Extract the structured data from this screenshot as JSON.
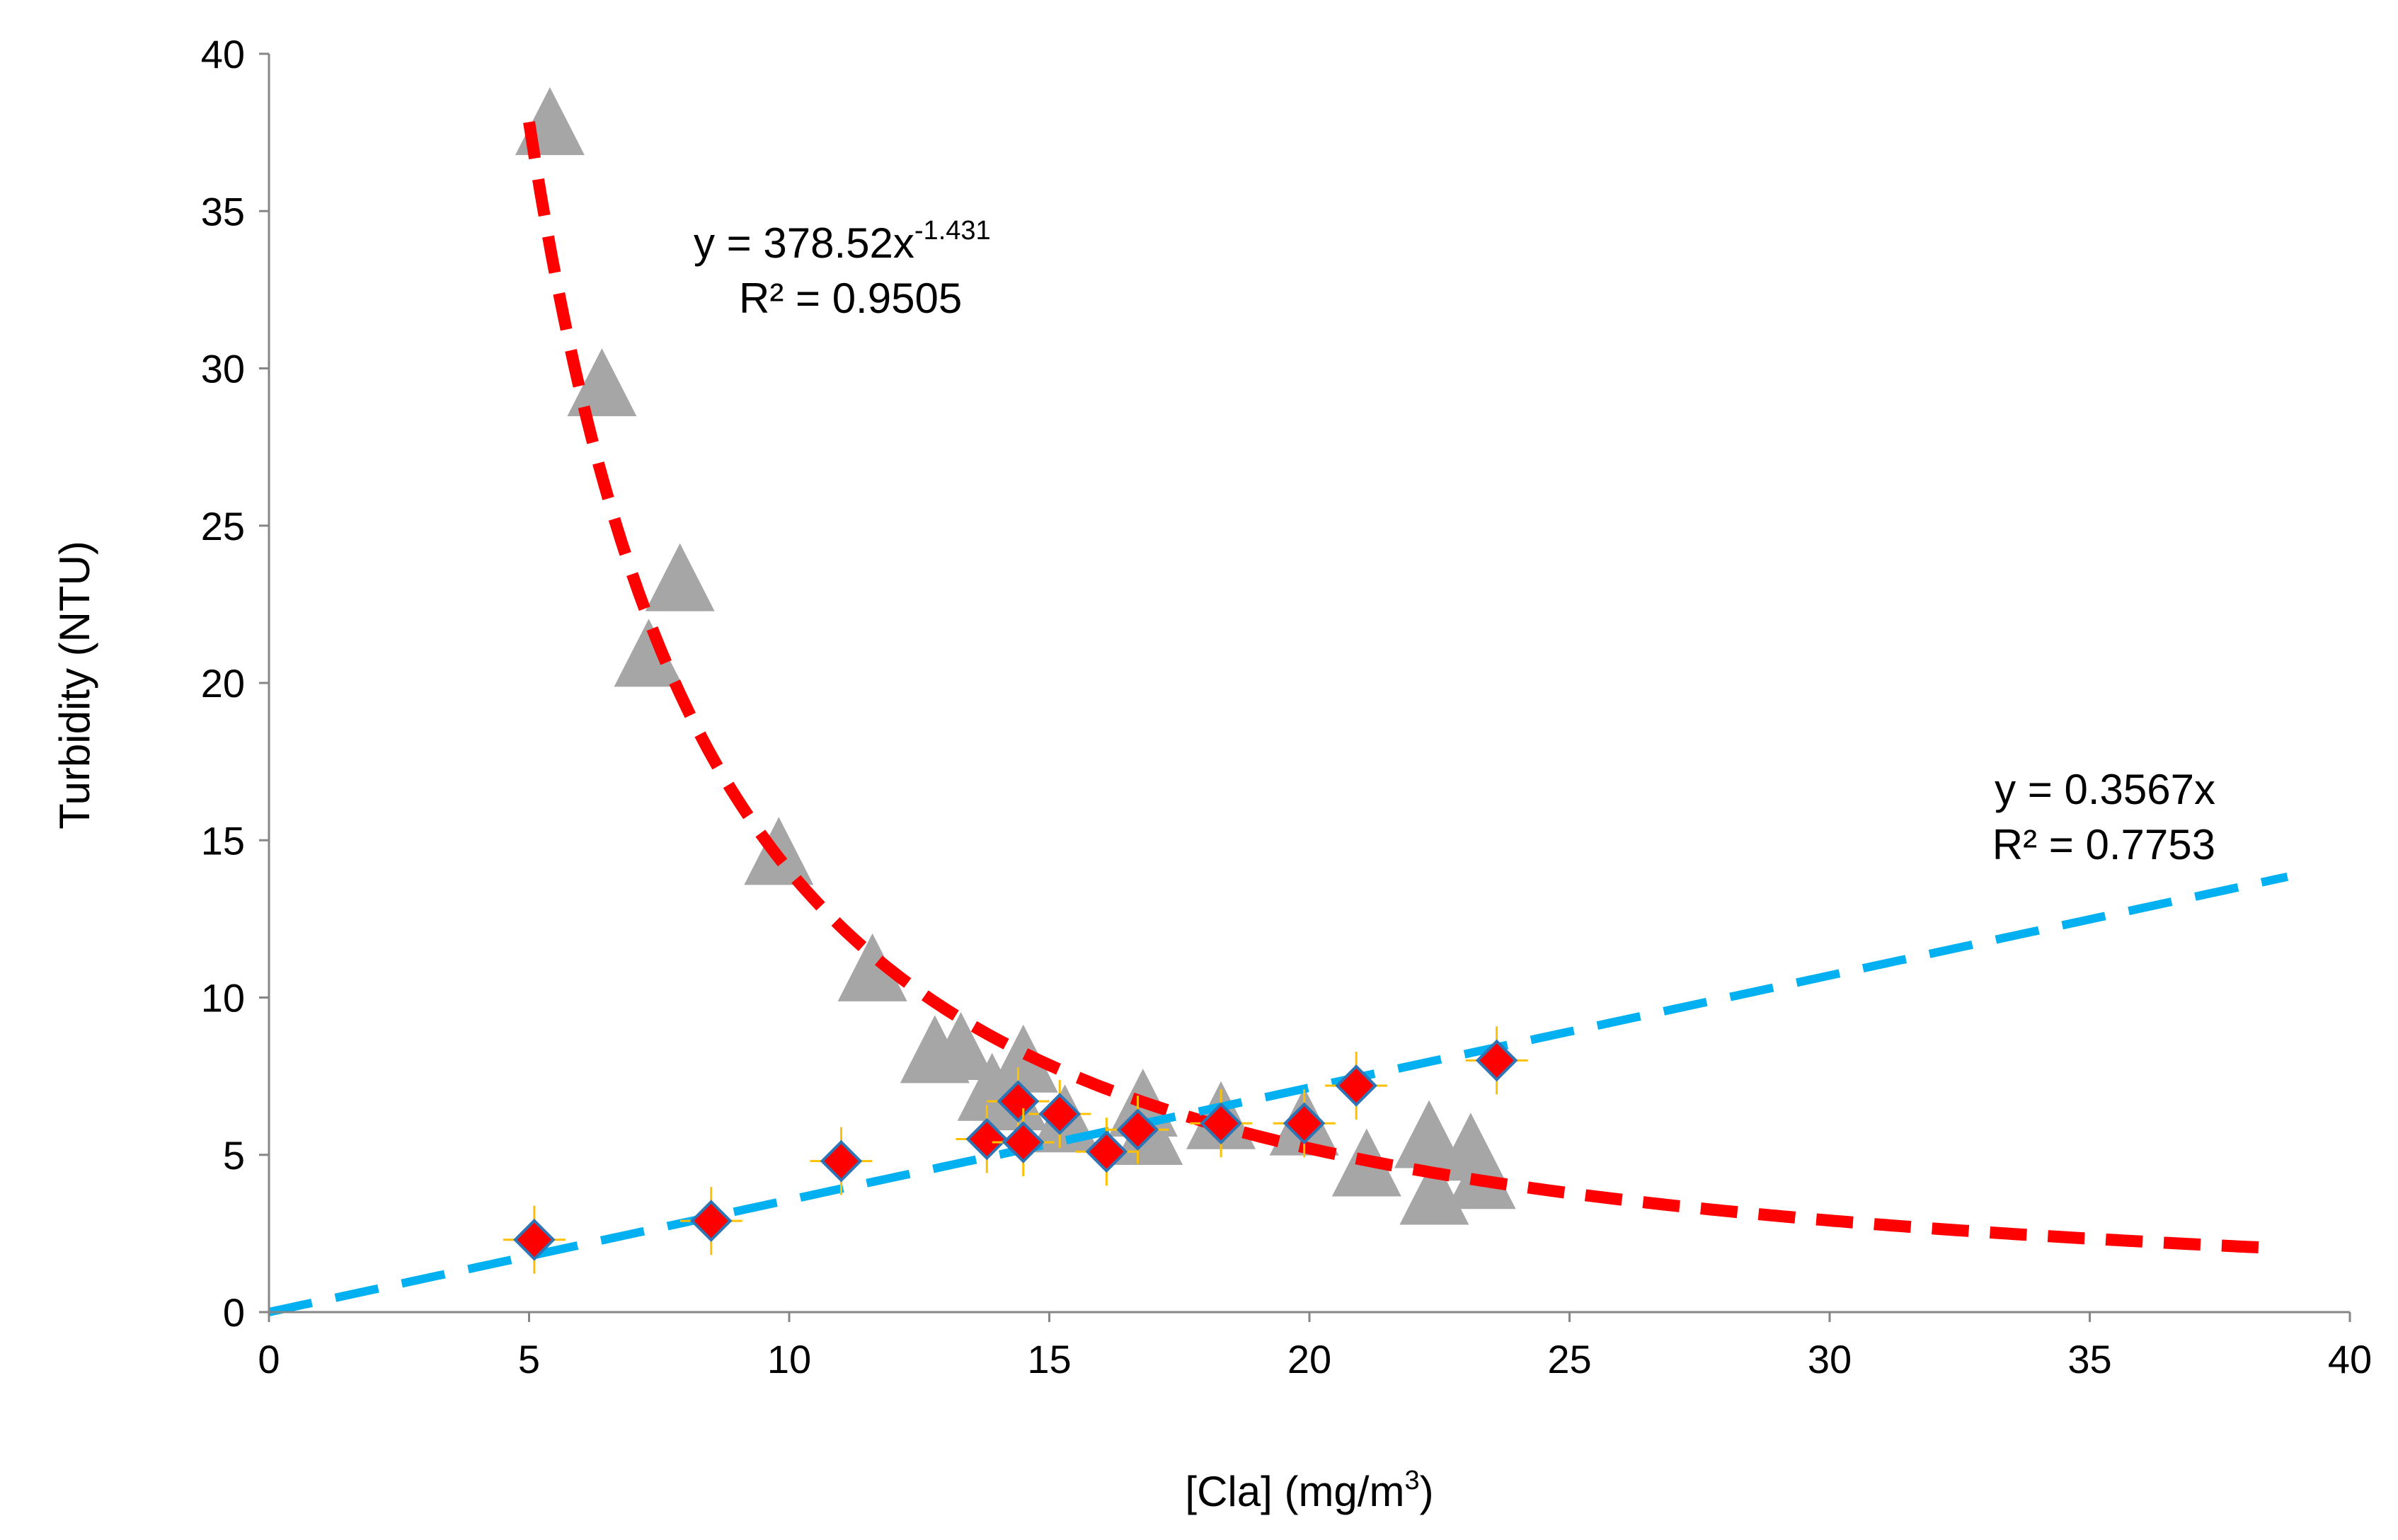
{
  "chart_data": {
    "type": "scatter",
    "title": "",
    "xlabel": "[Cla] (mg/m",
    "xlabel_sup": "3",
    "xlabel_close": ")",
    "ylabel": "Turbidity (NTU)",
    "xlim": [
      0,
      40
    ],
    "ylim": [
      0,
      40
    ],
    "x_ticks": [
      "0",
      "5",
      "10",
      "15",
      "20",
      "25",
      "30",
      "35",
      "40"
    ],
    "y_ticks": [
      "0",
      "5",
      "10",
      "15",
      "20",
      "25",
      "30",
      "35",
      "40"
    ],
    "grid": false,
    "legend": "none",
    "series": [
      {
        "marker": "triangle",
        "color": "#a6a6a6",
        "points": [
          [
            5.4,
            37.6
          ],
          [
            6.4,
            29.3
          ],
          [
            7.9,
            23.1
          ],
          [
            7.3,
            20.7
          ],
          [
            9.8,
            14.4
          ],
          [
            11.6,
            10.7
          ],
          [
            12.8,
            8.1
          ],
          [
            13.3,
            8.2
          ],
          [
            14.5,
            7.8
          ],
          [
            13.9,
            6.9
          ],
          [
            14.3,
            6.6
          ],
          [
            15.3,
            5.9
          ],
          [
            16.8,
            6.4
          ],
          [
            16.9,
            5.5
          ],
          [
            18.3,
            6.0
          ],
          [
            19.9,
            5.8
          ],
          [
            21.1,
            4.5
          ],
          [
            22.3,
            5.4
          ],
          [
            22.4,
            3.6
          ],
          [
            23.1,
            5.0
          ],
          [
            23.3,
            4.1
          ]
        ]
      },
      {
        "marker": "diamond",
        "color": "#ff0000",
        "edge_color": "#2e75b6",
        "error_bar_color": "#ffc000",
        "points": [
          [
            5.1,
            2.3
          ],
          [
            8.5,
            2.9
          ],
          [
            11.0,
            4.8
          ],
          [
            13.8,
            5.5
          ],
          [
            14.4,
            6.7
          ],
          [
            14.5,
            5.4
          ],
          [
            15.2,
            6.3
          ],
          [
            16.1,
            5.1
          ],
          [
            16.7,
            5.8
          ],
          [
            18.3,
            6.0
          ],
          [
            19.9,
            6.0
          ],
          [
            20.9,
            7.2
          ],
          [
            23.6,
            8.0
          ]
        ]
      }
    ],
    "trendlines": [
      {
        "kind": "power",
        "coefficient": 378.52,
        "exponent": -1.431,
        "x_range": [
          5.0,
          38.3
        ],
        "color": "#ff0000",
        "equation_prefix": "y = 378.52x",
        "equation_sup": "-1.431",
        "r2_label": "R² = 0.9505"
      },
      {
        "kind": "linear",
        "slope": 0.3567,
        "x_range": [
          0,
          38.8
        ],
        "color": "#00b0f0",
        "equation_prefix": "y = 0.3567x",
        "r2_label": "R² = 0.7753"
      }
    ]
  }
}
